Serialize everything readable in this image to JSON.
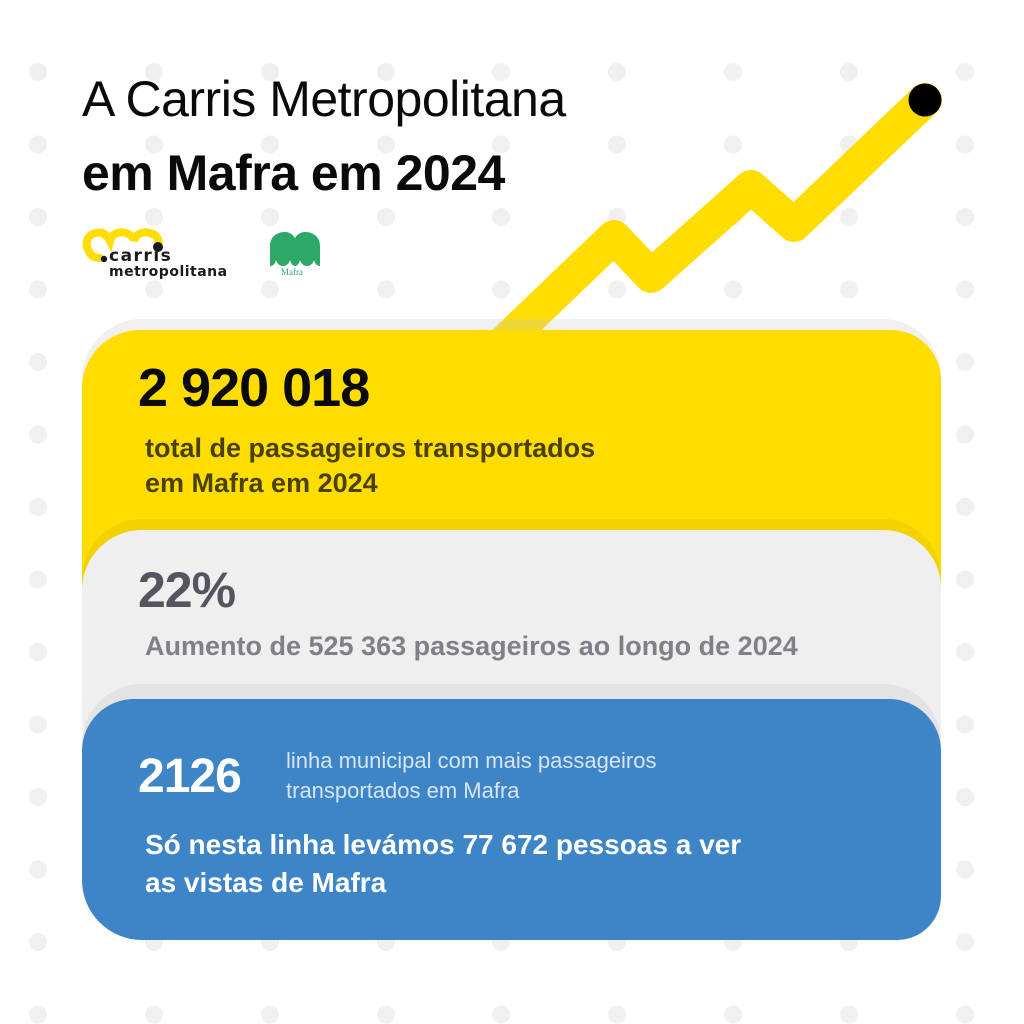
{
  "header": {
    "title_line1": "A Carris Metropolitana",
    "title_line2": "em Mafra em 2024"
  },
  "logos": {
    "carris": {
      "line1": "carris",
      "line2": "metropolitana",
      "icon": "carris-metropolitana-logo-icon"
    },
    "mafra": {
      "label": "Mafra",
      "icon": "mafra-municipality-logo-icon"
    }
  },
  "decoration": {
    "trend_line_icon": "rising-zigzag-line-icon",
    "trend_line_color": "#ffdd00",
    "trend_end_dot_color": "#000000"
  },
  "cards": {
    "total": {
      "value": "2 920 018",
      "caption_line1": "total de passageiros transportados",
      "caption_line2": "em Mafra em 2024",
      "color": "#ffdd00"
    },
    "growth": {
      "value": "22%",
      "caption": "Aumento de 525 363 passageiros ao longo de 2024",
      "color": "#efefef"
    },
    "top_line": {
      "value": "2126",
      "caption_line1": "linha municipal com mais passageiros",
      "caption_line2": "transportados em Mafra",
      "highlight_line1": "Só nesta linha levámos 77 672 pessoas a ver",
      "highlight_line2": "as vistas de Mafra",
      "color": "#3d85c6"
    }
  },
  "colors": {
    "background": "#ffffff",
    "dots": "#f0f0f0",
    "brand_yellow": "#ffdd00",
    "mafra_green": "#2ea866",
    "blue": "#3d85c6"
  }
}
